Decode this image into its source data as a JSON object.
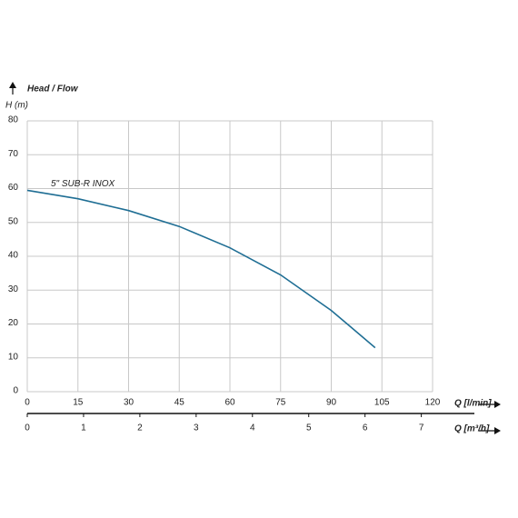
{
  "chart_data": {
    "type": "line",
    "title": "Head / Flow",
    "ylabel": "H (m)",
    "xlabel": "Q [l/min]",
    "x2label": "Q [m³/h]",
    "x": [
      0,
      15,
      30,
      45,
      60,
      75,
      90,
      103
    ],
    "series": [
      {
        "name": "5\" SUB-R INOX",
        "color": "#1f6e94",
        "values": [
          59.5,
          57,
          53.5,
          48.8,
          42.5,
          34.5,
          24,
          13
        ]
      }
    ],
    "xlim": [
      0,
      120
    ],
    "xticks": [
      0,
      15,
      30,
      45,
      60,
      75,
      90,
      105,
      120
    ],
    "ylim": [
      0,
      80
    ],
    "yticks": [
      0,
      10,
      20,
      30,
      40,
      50,
      60,
      70,
      80
    ],
    "x2lim": [
      0,
      7.2
    ],
    "x2ticks": [
      0,
      1,
      2,
      3,
      4,
      5,
      6,
      7
    ],
    "grid": true
  }
}
